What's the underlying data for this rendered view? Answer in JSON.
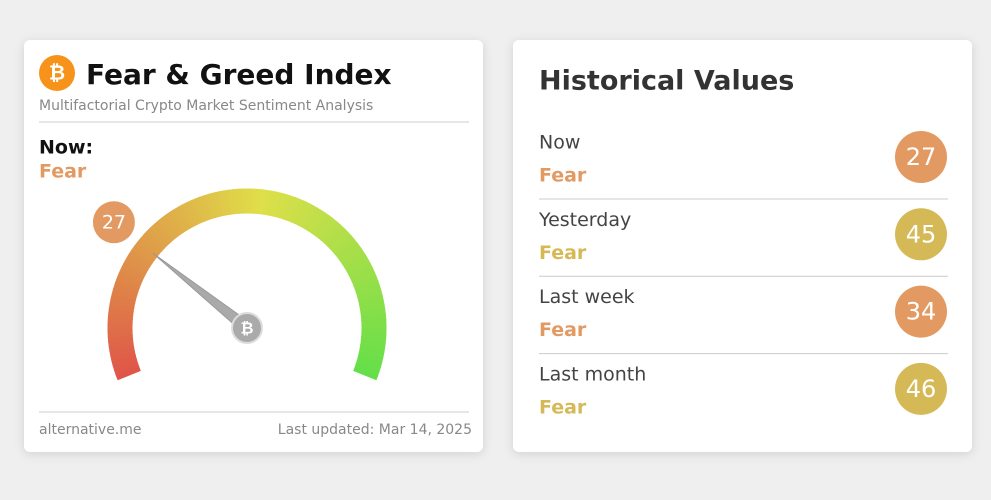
{
  "gauge_card": {
    "icon_symbol": "₿",
    "title": "Fear & Greed Index",
    "subtitle": "Multifactorial Crypto Market Sentiment Analysis",
    "now_label": "Now:",
    "now_class": "Fear",
    "value": 27,
    "range": [
      0,
      100
    ],
    "color": "#e39a62",
    "source": "alternative.me",
    "updated": "Last updated: Mar 14, 2025"
  },
  "history": {
    "title": "Historical Values",
    "rows": [
      {
        "period": "Now",
        "class": "Fear",
        "value": 27,
        "color": "#e39a62"
      },
      {
        "period": "Yesterday",
        "class": "Fear",
        "value": 45,
        "color": "#d6b957"
      },
      {
        "period": "Last week",
        "class": "Fear",
        "value": 34,
        "color": "#e39a62"
      },
      {
        "period": "Last month",
        "class": "Fear",
        "value": 46,
        "color": "#d6b957"
      }
    ]
  }
}
